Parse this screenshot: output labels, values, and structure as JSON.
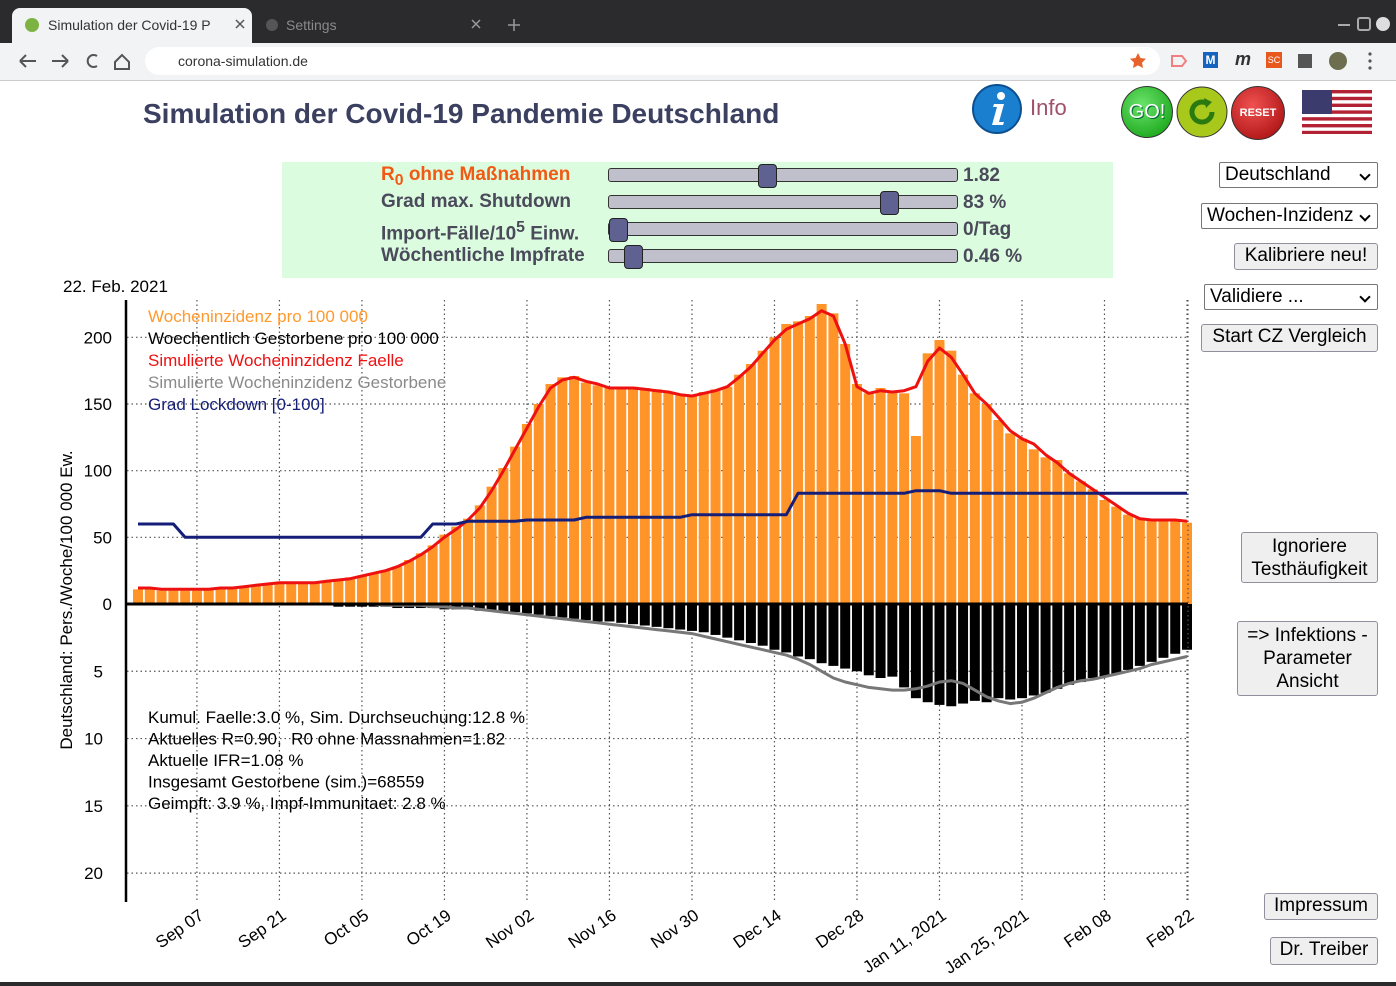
{
  "browser": {
    "tabs": [
      "Simulation der Covid-19 P",
      "Settings"
    ],
    "url": "corona-simulation.de",
    "extensions": [
      "M",
      "m",
      "SC"
    ]
  },
  "header": {
    "title": "Simulation der Covid-19 Pandemie Deutschland",
    "info": "Info",
    "go": "GO!",
    "reset": "RESET"
  },
  "sliders": [
    {
      "label": [
        "R",
        "0",
        " ohne Maßnahmen"
      ],
      "value": "1.82"
    },
    {
      "label": [
        "Grad max. Shutdown"
      ],
      "value": "83 %"
    },
    {
      "label": [
        "Import-Fälle/10",
        "5",
        " Einw."
      ],
      "value": "0/Tag"
    },
    {
      "label": [
        "Wöchentliche Impfrate"
      ],
      "value": "0.46 %"
    }
  ],
  "controls": {
    "region": "Deutschland",
    "metric": "Wochen-Inzidenz",
    "recalibrate": "Kalibriere neu!",
    "validate": "Validiere ...",
    "compare": "Start CZ Vergleich",
    "ignore_testing": [
      "Ignoriere",
      "Testhäufigkeit"
    ],
    "view": [
      "=> Infektions -",
      "Parameter",
      "Ansicht"
    ],
    "imprint": "Impressum",
    "author": "Dr. Treiber"
  },
  "chart_data": {
    "type": "combo",
    "date_label": "22. Feb. 2021",
    "ylabel": "Deutschland: Pers./Woche/100 000 Ew.",
    "categories": [
      null,
      null,
      null,
      null,
      null,
      "Sep 07",
      null,
      null,
      null,
      null,
      null,
      null,
      "Sep 21",
      null,
      null,
      null,
      null,
      null,
      null,
      "Oct 05",
      null,
      null,
      null,
      null,
      null,
      null,
      "Oct 19",
      null,
      null,
      null,
      null,
      null,
      null,
      "Nov 02",
      null,
      null,
      null,
      null,
      null,
      null,
      "Nov 16",
      null,
      null,
      null,
      null,
      null,
      null,
      "Nov 30",
      null,
      null,
      null,
      null,
      null,
      null,
      "Dec 14",
      null,
      null,
      null,
      null,
      null,
      null,
      "Dec 28",
      null,
      null,
      null,
      null,
      null,
      null,
      "Jan 11, 2021",
      null,
      null,
      null,
      null,
      null,
      null,
      "Jan 25, 2021",
      null,
      null,
      null,
      null,
      null,
      null,
      "Feb 08",
      null,
      null,
      null,
      null,
      null,
      null,
      "Feb 22"
    ],
    "ylim": [
      0,
      228
    ],
    "yticks": [
      0,
      50,
      100,
      150,
      200
    ],
    "y2lim": [
      0,
      22
    ],
    "y2ticks": [
      5,
      10,
      15,
      20
    ],
    "y2_direction": "down",
    "grid": true,
    "legend": "top-left",
    "series": [
      {
        "name": "Wocheninzidenz pro 100 000",
        "type": "bar",
        "color": "#ff9428",
        "legend_color": "#ff9a2e",
        "values": [
          11,
          11,
          10,
          10,
          10,
          10,
          11,
          11,
          12,
          13,
          14,
          15,
          16,
          16,
          16,
          16,
          17,
          18,
          20,
          21,
          23,
          25,
          28,
          33,
          38,
          44,
          52,
          58,
          64,
          74,
          88,
          102,
          118,
          135,
          150,
          165,
          170,
          171,
          166,
          164,
          162,
          163,
          163,
          162,
          161,
          159,
          157,
          157,
          159,
          161,
          163,
          172,
          180,
          190,
          200,
          210,
          212,
          216,
          225,
          218,
          195,
          165,
          158,
          162,
          160,
          158,
          126,
          188,
          198,
          190,
          172,
          158,
          150,
          138,
          128,
          124,
          116,
          110,
          108,
          98,
          92,
          86,
          78,
          73,
          67,
          64,
          63,
          62,
          62,
          61
        ]
      },
      {
        "name": "Woechentlich Gestorbene pro 100 000",
        "type": "bar",
        "axis": "y2",
        "color": "#000000",
        "legend_color": "#000000",
        "values": [
          0.1,
          0.1,
          0.1,
          0.1,
          0.1,
          0.1,
          0.1,
          0.1,
          0.1,
          0.1,
          0.1,
          0.1,
          0.1,
          0.1,
          0.1,
          0.1,
          0.1,
          0.2,
          0.2,
          0.2,
          0.2,
          0.2,
          0.3,
          0.3,
          0.3,
          0.3,
          0.4,
          0.4,
          0.4,
          0.5,
          0.5,
          0.6,
          0.6,
          0.7,
          0.8,
          0.9,
          1.0,
          1.1,
          1.2,
          1.3,
          1.3,
          1.4,
          1.5,
          1.6,
          1.7,
          1.8,
          1.9,
          2.0,
          2.1,
          2.3,
          2.5,
          2.7,
          2.9,
          3.1,
          3.4,
          3.6,
          3.9,
          4.1,
          4.4,
          4.6,
          4.8,
          5.0,
          5.3,
          5.5,
          5.4,
          6.2,
          7.0,
          7.3,
          7.5,
          7.6,
          7.4,
          7.2,
          7.3,
          7.0,
          7.1,
          7.0,
          6.8,
          6.6,
          6.3,
          6.0,
          5.8,
          5.5,
          5.4,
          5.2,
          4.9,
          4.6,
          4.3,
          4.0,
          3.7,
          3.4
        ]
      },
      {
        "name": "Simulierte Wocheninzidenz Faelle",
        "type": "line",
        "color": "#ee1111",
        "legend_color": "#ee1111",
        "values": [
          12,
          12,
          11,
          11,
          11,
          11,
          11,
          12,
          12,
          13,
          14,
          15,
          16,
          16,
          16,
          16,
          17,
          18,
          19,
          21,
          23,
          25,
          28,
          32,
          37,
          43,
          50,
          56,
          63,
          72,
          85,
          100,
          116,
          132,
          148,
          162,
          168,
          170,
          167,
          165,
          162,
          162,
          162,
          161,
          160,
          159,
          157,
          156,
          158,
          160,
          163,
          170,
          178,
          188,
          198,
          206,
          210,
          214,
          220,
          216,
          195,
          163,
          158,
          160,
          159,
          160,
          163,
          182,
          192,
          185,
          172,
          158,
          150,
          140,
          130,
          124,
          120,
          112,
          106,
          98,
          92,
          86,
          80,
          74,
          68,
          64,
          63,
          63,
          63,
          62
        ]
      },
      {
        "name": "Simulierte Wocheninzidenz Gestorbene",
        "type": "line",
        "axis": "y2",
        "color": "#777777",
        "legend_color": "#8a8a8a",
        "values": [
          0,
          0,
          0,
          0,
          0,
          0,
          0,
          0,
          0,
          0,
          0,
          0,
          0,
          0,
          0,
          0,
          0,
          0,
          0,
          0,
          0,
          0.1,
          0.1,
          0.1,
          0.1,
          0.2,
          0.2,
          0.3,
          0.3,
          0.4,
          0.5,
          0.6,
          0.7,
          0.8,
          0.9,
          1.0,
          1.1,
          1.2,
          1.3,
          1.4,
          1.5,
          1.6,
          1.7,
          1.8,
          1.9,
          2.0,
          2.1,
          2.2,
          2.4,
          2.6,
          2.8,
          3.0,
          3.2,
          3.4,
          3.6,
          3.8,
          4.1,
          4.5,
          5.0,
          5.5,
          5.8,
          6.0,
          6.2,
          6.3,
          6.4,
          6.4,
          6.3,
          6.1,
          5.8,
          5.7,
          5.9,
          6.4,
          6.9,
          7.2,
          7.4,
          7.3,
          7.0,
          6.6,
          6.2,
          5.9,
          5.7,
          5.6,
          5.4,
          5.2,
          5.0,
          4.8,
          4.5,
          4.3,
          4.1,
          3.9
        ]
      },
      {
        "name": "Grad Lockdown [0-100]",
        "type": "line",
        "color": "#141e78",
        "legend_color": "#141e78",
        "values": [
          60,
          60,
          60,
          60,
          50,
          50,
          50,
          50,
          50,
          50,
          50,
          50,
          50,
          50,
          50,
          50,
          50,
          50,
          50,
          50,
          50,
          50,
          50,
          50,
          50,
          60,
          60,
          60,
          62,
          62,
          62,
          62,
          62,
          63,
          63,
          63,
          63,
          63,
          65,
          65,
          65,
          65,
          65,
          65,
          65,
          65,
          65,
          67,
          67,
          67,
          67,
          67,
          67,
          67,
          67,
          67,
          83,
          83,
          83,
          83,
          83,
          83,
          83,
          83,
          83,
          83,
          85,
          85,
          85,
          83,
          83,
          83,
          83,
          83,
          83,
          83,
          83,
          83,
          83,
          83,
          83,
          83,
          83,
          83,
          83,
          83,
          83,
          83,
          83,
          83
        ]
      }
    ],
    "annotations": [
      "Kumul. Faelle:3.0 %, Sim. Durchseuchung:12.8 %",
      "Aktuelles R=0.90,  R0 ohne Massnahmen=1.82",
      "Aktuelle IFR=1.08 %",
      "Insgesamt Gestorbene (sim.)=68559",
      "Geimpft: 3.9 %, Impf-Immunitaet: 2.8 %"
    ]
  }
}
